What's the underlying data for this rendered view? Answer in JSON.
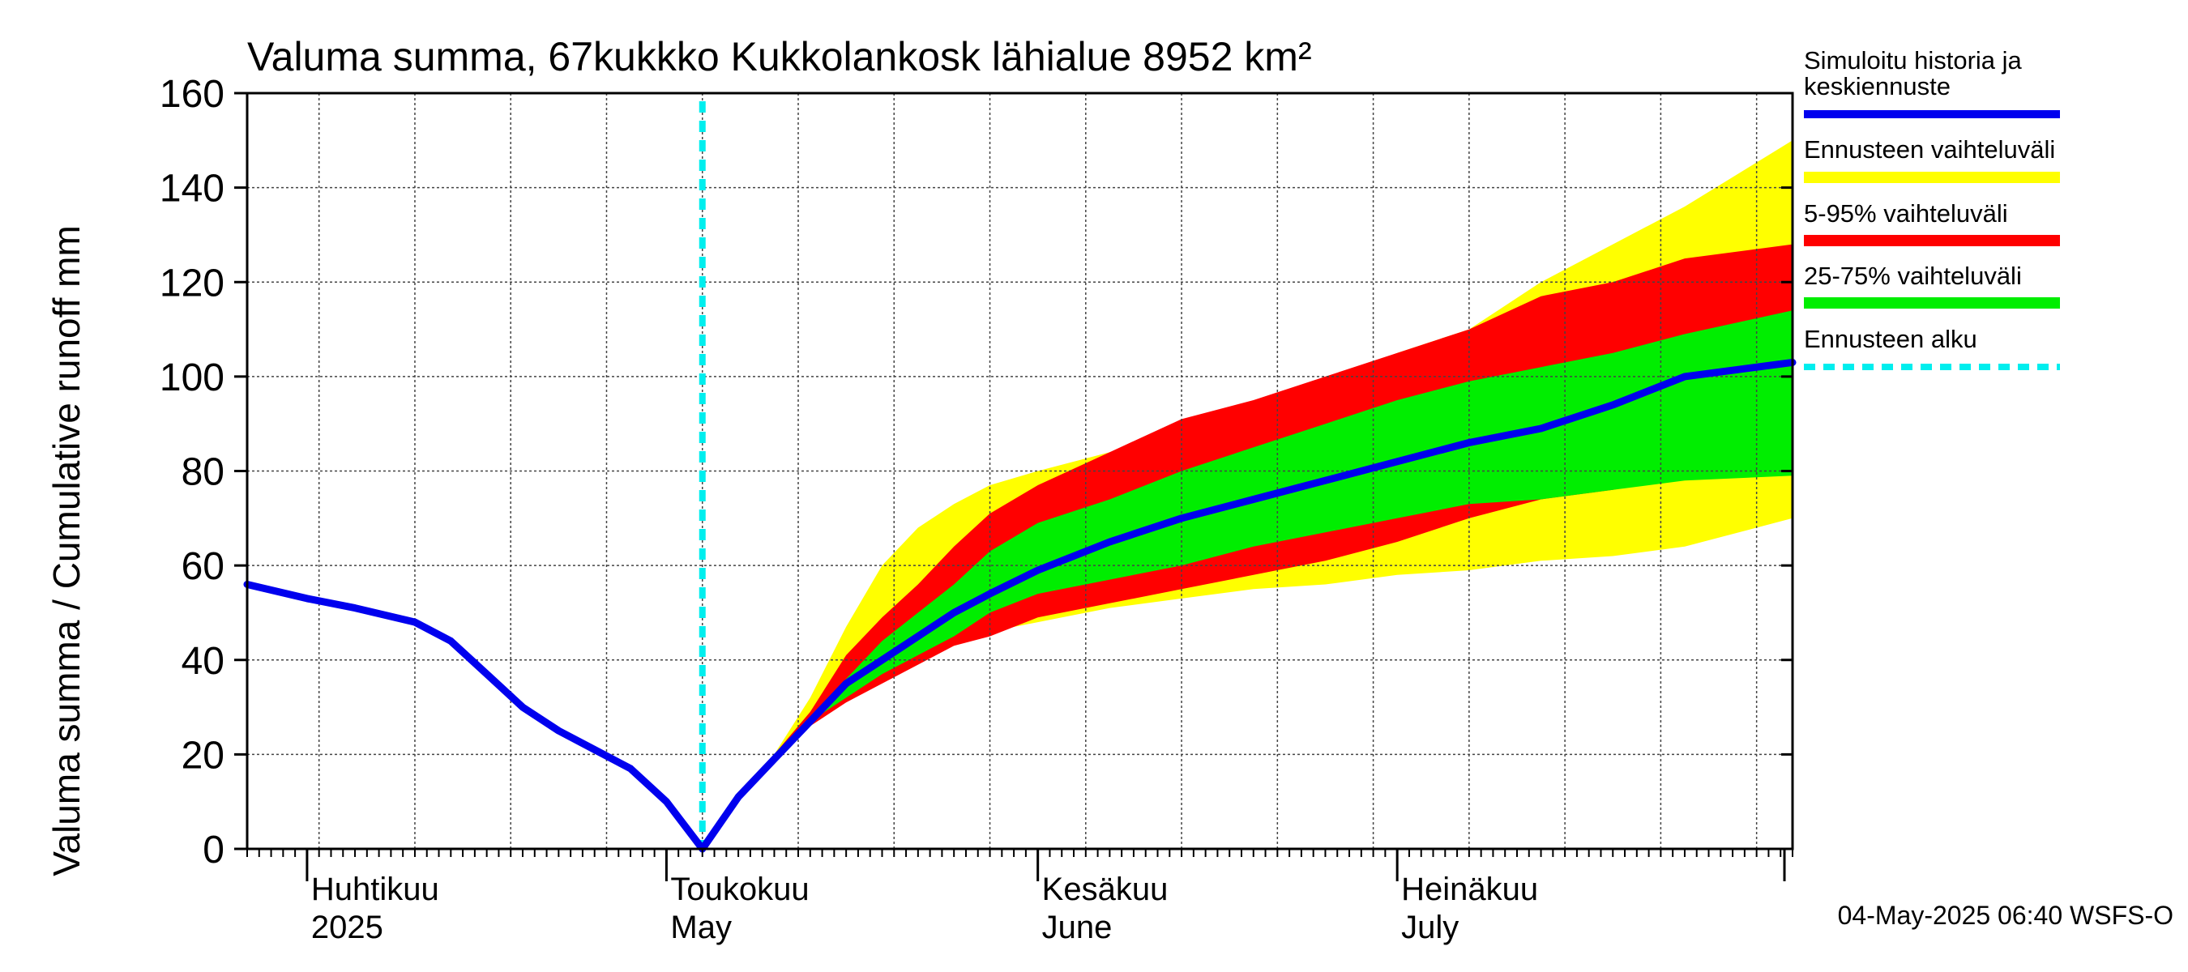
{
  "chart_data": {
    "type": "area",
    "title": "Valuma summa, 67kukkko Kukkolankosk lähialue 8952 km²",
    "ylabel": "Valuma summa / Cumulative runoff    mm",
    "ylim": [
      0,
      160
    ],
    "yticks": [
      "0",
      "20",
      "40",
      "60",
      "80",
      "100",
      "120",
      "140",
      "160"
    ],
    "xlim": [
      "2025-03-27",
      "2025-08-03"
    ],
    "forecast_start": "2025-05-04",
    "grid": true,
    "legend_position": "right",
    "month_labels": [
      {
        "date": "2025-04-01",
        "fi": "Huhtikuu",
        "en": "2025"
      },
      {
        "date": "2025-05-01",
        "fi": "Toukokuu",
        "en": "May"
      },
      {
        "date": "2025-06-01",
        "fi": "Kesäkuu",
        "en": "June"
      },
      {
        "date": "2025-07-01",
        "fi": "Heinäkuu",
        "en": "July"
      }
    ],
    "legend": [
      {
        "label": "Simuloitu historia ja",
        "label2": "keskiennuste",
        "color": "#0000ee"
      },
      {
        "label": "Ennusteen vaihteluväli",
        "color": "#ffff00"
      },
      {
        "label": "5-95% vaihteluväli",
        "color": "#ff0000"
      },
      {
        "label": "25-75% vaihteluväli",
        "color": "#00ee00"
      },
      {
        "label": "Ennusteen alku",
        "color": "#00eeee"
      }
    ],
    "series": [
      {
        "name": "Ennusteen vaihteluväli",
        "type": "band",
        "color": "#ffff00",
        "x": [
          "2025-05-04",
          "2025-05-07",
          "2025-05-10",
          "2025-05-13",
          "2025-05-16",
          "2025-05-19",
          "2025-05-22",
          "2025-05-25",
          "2025-05-28",
          "2025-06-01",
          "2025-06-07",
          "2025-06-13",
          "2025-06-19",
          "2025-06-25",
          "2025-07-01",
          "2025-07-07",
          "2025-07-13",
          "2025-07-19",
          "2025-07-25",
          "2025-08-03"
        ],
        "low": [
          0,
          12,
          20,
          27,
          32,
          36,
          40,
          43,
          46,
          48,
          51,
          53,
          55,
          56,
          58,
          59,
          61,
          62,
          64,
          70
        ],
        "high": [
          0,
          12,
          20,
          32,
          47,
          60,
          68,
          73,
          77,
          80,
          84,
          89,
          94,
          99,
          105,
          110,
          120,
          128,
          136,
          150
        ]
      },
      {
        "name": "5-95% vaihteluväli",
        "type": "band",
        "color": "#ff0000",
        "x": [
          "2025-05-04",
          "2025-05-07",
          "2025-05-10",
          "2025-05-13",
          "2025-05-16",
          "2025-05-19",
          "2025-05-22",
          "2025-05-25",
          "2025-05-28",
          "2025-06-01",
          "2025-06-07",
          "2025-06-13",
          "2025-06-19",
          "2025-06-25",
          "2025-07-01",
          "2025-07-07",
          "2025-07-13",
          "2025-07-19",
          "2025-07-25",
          "2025-08-03"
        ],
        "low": [
          0,
          12,
          20,
          26,
          31,
          35,
          39,
          43,
          45,
          49,
          52,
          55,
          58,
          61,
          65,
          70,
          74,
          76,
          79,
          85
        ],
        "high": [
          0,
          12,
          20,
          29,
          41,
          49,
          56,
          64,
          71,
          77,
          84,
          91,
          95,
          100,
          105,
          110,
          117,
          120,
          125,
          128
        ]
      },
      {
        "name": "25-75% vaihteluväli",
        "type": "band",
        "color": "#00ee00",
        "x": [
          "2025-05-04",
          "2025-05-07",
          "2025-05-10",
          "2025-05-13",
          "2025-05-16",
          "2025-05-19",
          "2025-05-22",
          "2025-05-25",
          "2025-05-28",
          "2025-06-01",
          "2025-06-07",
          "2025-06-13",
          "2025-06-19",
          "2025-06-25",
          "2025-07-01",
          "2025-07-07",
          "2025-07-13",
          "2025-07-19",
          "2025-07-25",
          "2025-08-03"
        ],
        "low": [
          0,
          12,
          20,
          27,
          32,
          37,
          41,
          45,
          50,
          54,
          57,
          60,
          64,
          67,
          70,
          73,
          74,
          76,
          78,
          79
        ],
        "high": [
          0,
          12,
          20,
          28,
          36,
          44,
          50,
          56,
          63,
          69,
          74,
          80,
          85,
          90,
          95,
          99,
          102,
          105,
          109,
          114
        ]
      },
      {
        "name": "Simuloitu historia ja keskiennuste",
        "type": "line",
        "color": "#0000ee",
        "x": [
          "2025-03-27",
          "2025-04-01",
          "2025-04-05",
          "2025-04-10",
          "2025-04-13",
          "2025-04-16",
          "2025-04-19",
          "2025-04-22",
          "2025-04-25",
          "2025-04-28",
          "2025-05-01",
          "2025-05-04",
          "2025-05-07",
          "2025-05-10",
          "2025-05-13",
          "2025-05-16",
          "2025-05-19",
          "2025-05-22",
          "2025-05-25",
          "2025-05-28",
          "2025-06-01",
          "2025-06-07",
          "2025-06-13",
          "2025-06-19",
          "2025-06-25",
          "2025-07-01",
          "2025-07-07",
          "2025-07-13",
          "2025-07-19",
          "2025-07-25",
          "2025-08-03"
        ],
        "y": [
          56,
          53,
          51,
          48,
          44,
          37,
          30,
          25,
          21,
          17,
          10,
          0,
          11,
          19,
          27,
          35,
          40,
          45,
          50,
          54,
          59,
          65,
          70,
          74,
          78,
          82,
          86,
          89,
          94,
          100,
          103
        ]
      }
    ]
  },
  "footer": {
    "timestamp": "04-May-2025 06:40 WSFS-O"
  }
}
